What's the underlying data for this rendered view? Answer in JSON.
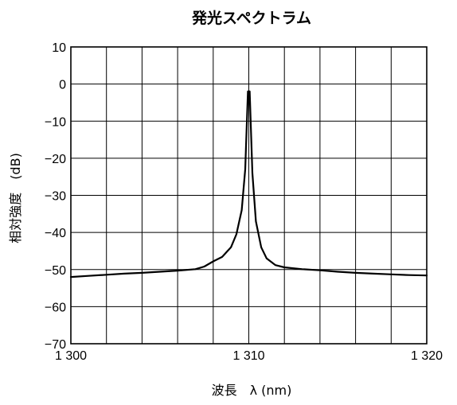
{
  "chart_data": {
    "type": "line",
    "title": "発光スペクトラム",
    "xlabel": "波長　λ (nm)",
    "ylabel": "相対強度　(dB)",
    "xlim": [
      1300,
      1320
    ],
    "ylim": [
      -70,
      10
    ],
    "grid": true,
    "x_ticks": [
      1300,
      1310,
      1320
    ],
    "x_tick_labels": [
      "1 300",
      "1 310",
      "1 320"
    ],
    "y_ticks": [
      10,
      0,
      -10,
      -20,
      -30,
      -40,
      -50,
      -60,
      -70
    ],
    "y_tick_labels": [
      "10",
      "0",
      "−10",
      "−20",
      "−30",
      "−40",
      "−50",
      "−60",
      "−70"
    ],
    "series": [
      {
        "color": "#000000",
        "x": [
          1300,
          1301,
          1302,
          1303,
          1304,
          1305,
          1306,
          1307,
          1307.5,
          1308,
          1308.5,
          1309,
          1309.3,
          1309.6,
          1309.8,
          1309.95,
          1310.05,
          1310.2,
          1310.4,
          1310.7,
          1311,
          1311.5,
          1312,
          1313,
          1314,
          1315,
          1316,
          1317,
          1318,
          1319,
          1320
        ],
        "y": [
          -52,
          -51.7,
          -51.4,
          -51.1,
          -50.9,
          -50.6,
          -50.3,
          -49.9,
          -49.2,
          -47.8,
          -46.6,
          -44,
          -40.5,
          -34,
          -23,
          -2,
          -2,
          -24,
          -37,
          -44,
          -47,
          -48.8,
          -49.4,
          -49.9,
          -50.2,
          -50.6,
          -50.9,
          -51.1,
          -51.3,
          -51.5,
          -51.6
        ]
      }
    ]
  }
}
